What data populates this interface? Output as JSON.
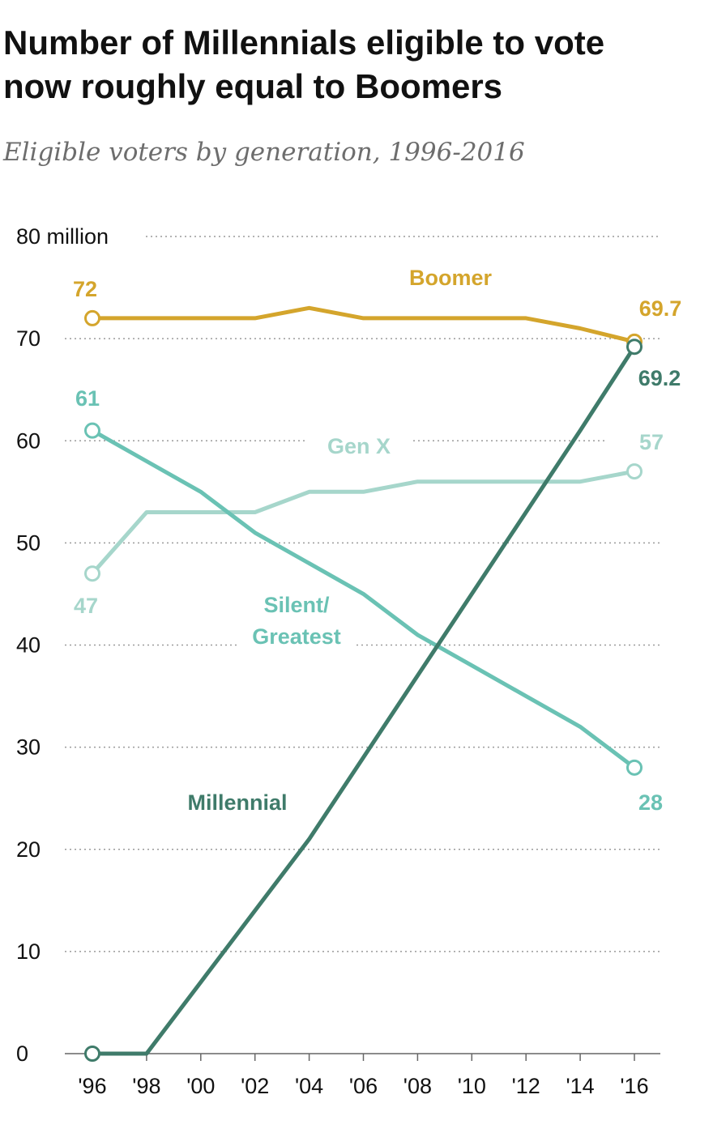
{
  "header": {
    "title_line1": "Number of Millennials eligible to vote",
    "title_line2": "now roughly equal to Boomers",
    "subtitle": "Eligible voters by generation, 1996-2016"
  },
  "chart_data": {
    "type": "line",
    "title": "Number of Millennials eligible to vote now roughly equal to Boomers",
    "subtitle": "Eligible voters by generation, 1996-2016",
    "xlabel": "",
    "ylabel": "",
    "x": [
      "'96",
      "'98",
      "'00",
      "'02",
      "'04",
      "'06",
      "'08",
      "'10",
      "'12",
      "'14",
      "'16"
    ],
    "years": [
      1996,
      1998,
      2000,
      2002,
      2004,
      2006,
      2008,
      2010,
      2012,
      2014,
      2016
    ],
    "ylim": [
      0,
      80
    ],
    "yticks": [
      0,
      10,
      20,
      30,
      40,
      50,
      60,
      70,
      80
    ],
    "ytick_labels": [
      "0",
      "10",
      "20",
      "30",
      "40",
      "50",
      "60",
      "70",
      "80"
    ],
    "y_unit": "million",
    "grid": true,
    "series": [
      {
        "name": "Boomer",
        "color": "#d4a52c",
        "values": [
          72,
          72,
          72,
          72,
          73,
          72,
          72,
          72,
          72,
          71,
          69.7
        ],
        "start_label": "72",
        "end_label": "69.7"
      },
      {
        "name": "Gen X",
        "color": "#a6d6cb",
        "values": [
          47,
          53,
          53,
          53,
          55,
          55,
          56,
          56,
          56,
          56,
          57
        ],
        "start_label": "47",
        "end_label": "57"
      },
      {
        "name": "Silent/ Greatest",
        "name_lines": [
          "Silent/",
          "Greatest"
        ],
        "color": "#6ac2b4",
        "values": [
          61,
          58,
          55,
          51,
          48,
          45,
          41,
          38,
          35,
          32,
          28
        ],
        "start_label": "61",
        "end_label": "28"
      },
      {
        "name": "Millennial",
        "color": "#3f7b6a",
        "values": [
          0,
          0,
          7,
          14,
          21,
          29,
          37,
          45,
          53,
          61,
          69.2
        ],
        "start_label": "",
        "end_label": "69.2"
      }
    ]
  }
}
